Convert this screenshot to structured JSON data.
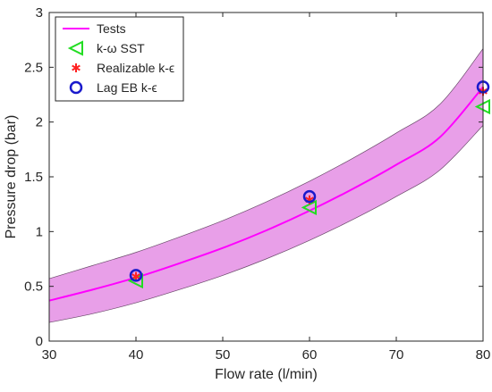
{
  "chart_data": {
    "type": "line",
    "xlabel": "Flow rate (l/min)",
    "ylabel": "Pressure drop (bar)",
    "xlim": [
      30,
      80
    ],
    "ylim": [
      0,
      3
    ],
    "xticks": [
      "30",
      "40",
      "50",
      "60",
      "70",
      "80"
    ],
    "yticks": [
      "0",
      "0.5",
      "1",
      "1.5",
      "2",
      "2.5",
      "3"
    ],
    "grid": false,
    "legend_position": "top-left",
    "series": [
      {
        "name": "Tests",
        "kind": "line",
        "color": "#ff00ff",
        "x": [
          30,
          35,
          40,
          45,
          50,
          55,
          60,
          65,
          70,
          75,
          80
        ],
        "y": [
          0.37,
          0.47,
          0.58,
          0.71,
          0.85,
          1.01,
          1.19,
          1.39,
          1.61,
          1.86,
          2.32
        ],
        "band_color": "#e48ee4",
        "band_upper": [
          0.57,
          0.69,
          0.81,
          0.95,
          1.1,
          1.27,
          1.46,
          1.67,
          1.9,
          2.16,
          2.67
        ],
        "band_lower": [
          0.17,
          0.25,
          0.35,
          0.47,
          0.6,
          0.75,
          0.92,
          1.11,
          1.32,
          1.56,
          1.97
        ]
      },
      {
        "name": "k-ω SST",
        "kind": "marker",
        "marker": "triangle-left",
        "color": "#22dd22",
        "x": [
          40,
          60,
          80
        ],
        "y": [
          0.55,
          1.22,
          2.14
        ]
      },
      {
        "name": "Realizable k-ϵ",
        "kind": "marker",
        "marker": "asterisk",
        "color": "#ff2222",
        "x": [
          40,
          60,
          80
        ],
        "y": [
          0.59,
          1.29,
          2.28
        ]
      },
      {
        "name": "Lag EB k-ϵ",
        "kind": "marker",
        "marker": "circle",
        "color": "#1a1acc",
        "x": [
          40,
          60,
          80
        ],
        "y": [
          0.6,
          1.32,
          2.32
        ]
      }
    ]
  }
}
